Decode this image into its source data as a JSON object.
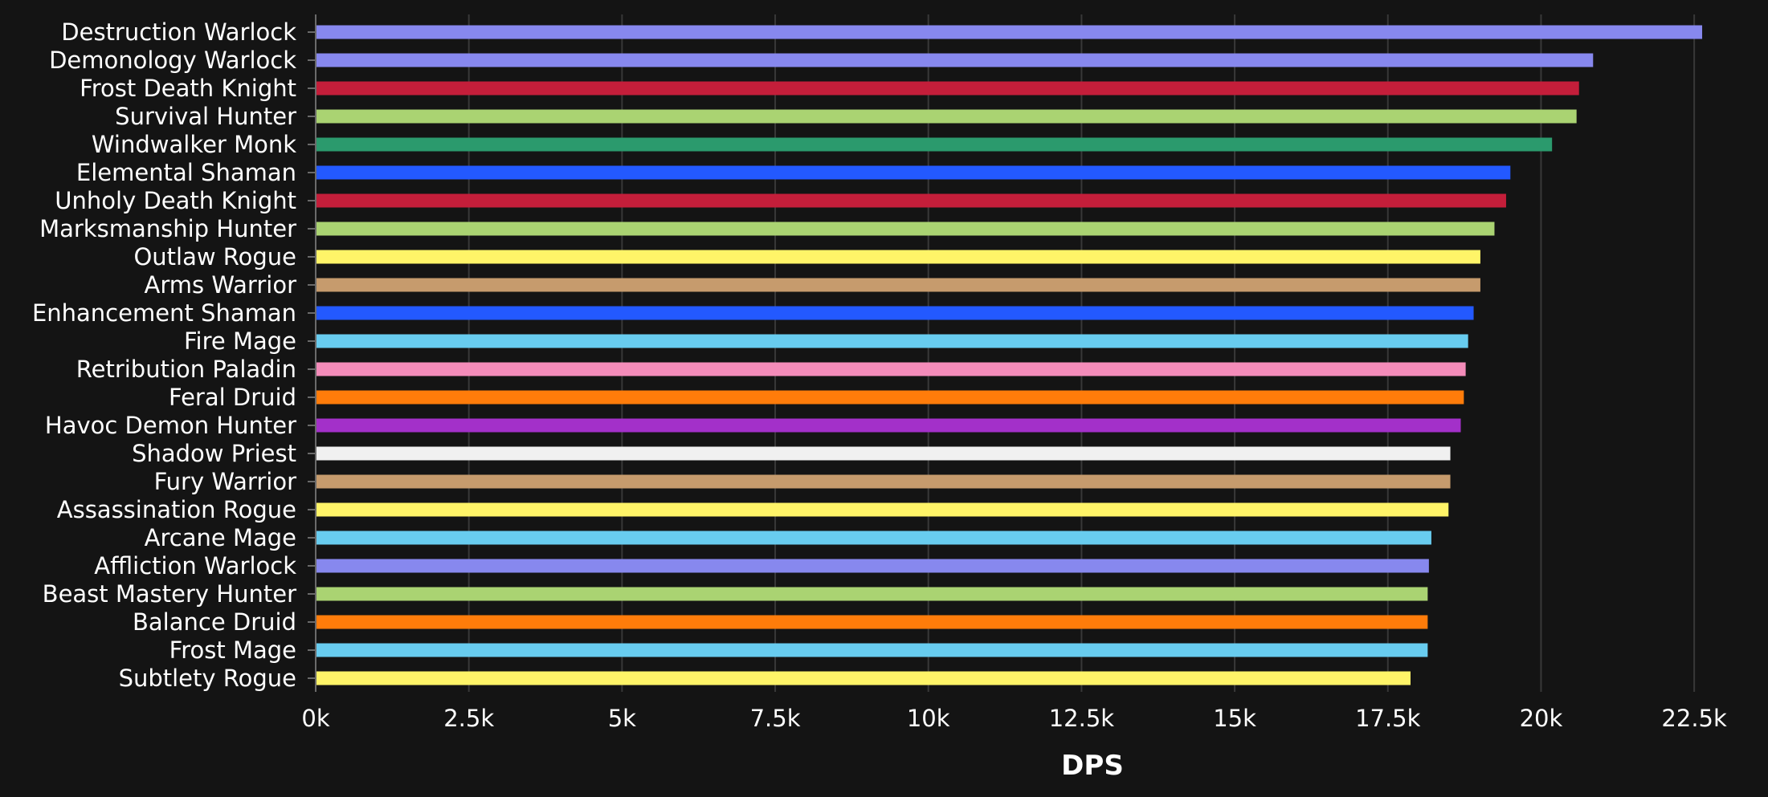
{
  "chart_data": {
    "type": "bar",
    "orientation": "horizontal",
    "title": "",
    "xlabel": "DPS",
    "ylabel": "",
    "xlim": [
      0,
      22800
    ],
    "x_ticks": [
      0,
      2500,
      5000,
      7500,
      10000,
      12500,
      15000,
      17500,
      20000,
      22500
    ],
    "x_tick_labels": [
      "0k",
      "2.5k",
      "5k",
      "7.5k",
      "10k",
      "12.5k",
      "15k",
      "17.5k",
      "20k",
      "22.5k"
    ],
    "grid": "vertical",
    "background_color": "#141414",
    "categories": [
      "Destruction Warlock",
      "Demonology Warlock",
      "Frost Death Knight",
      "Survival Hunter",
      "Windwalker Monk",
      "Elemental Shaman",
      "Unholy Death Knight",
      "Marksmanship Hunter",
      "Outlaw Rogue",
      "Arms Warrior",
      "Enhancement Shaman",
      "Fire Mage",
      "Retribution Paladin",
      "Feral Druid",
      "Havoc Demon Hunter",
      "Shadow Priest",
      "Fury Warrior",
      "Assassination Rogue",
      "Arcane Mage",
      "Affliction Warlock",
      "Beast Mastery Hunter",
      "Balance Druid",
      "Frost Mage",
      "Subtlety Rogue"
    ],
    "values": [
      22630,
      20850,
      20620,
      20580,
      20180,
      19500,
      19430,
      19240,
      19010,
      19010,
      18900,
      18810,
      18770,
      18740,
      18690,
      18520,
      18520,
      18490,
      18210,
      18170,
      18150,
      18150,
      18150,
      17870
    ],
    "colors": [
      "#8788ee",
      "#8788ee",
      "#c41e3a",
      "#aad372",
      "#2b9a6d",
      "#2359ff",
      "#c41e3a",
      "#aad372",
      "#fff468",
      "#c69b6d",
      "#2359ff",
      "#68ccef",
      "#f48cba",
      "#ff7c0a",
      "#a330c9",
      "#f0f0f0",
      "#c69b6d",
      "#fff468",
      "#68ccef",
      "#8788ee",
      "#aad372",
      "#ff7c0a",
      "#68ccef",
      "#fff468"
    ]
  }
}
